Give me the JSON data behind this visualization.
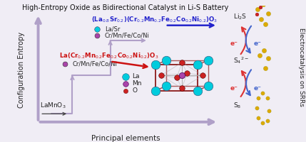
{
  "title": "High-Entropy Oxide as Bidirectional Catalyst in Li-S Battery",
  "title_fontsize": 7.0,
  "bg_color": "#f0edf5",
  "xlabel": "Principal elements",
  "ylabel": "Configuration Entropy",
  "right_label": "Electrocatalysis on SRRs",
  "formula_blue": "(La$_{0.8}$Sr$_{0.2}$)(Cr$_{0.2}$Mn$_{0.2}$Fe$_{0.2}$Co$_{0.2}$Ni$_{0.2}$)O$_3$",
  "formula_red": "La(Cr$_{0.2}$Mn$_{0.2}$Fe$_{0.2}$Co$_{0.2}$Ni$_{0.2}$)O$_3$",
  "formula_base": "LaMnO$_3$",
  "legend_La": "La",
  "legend_Mn": "Mn",
  "legend_O": "O",
  "legend_LaSr": "La/Sr",
  "legend_CrMn": "Cr/Mn/Fe/Co/Ni",
  "color_blue": "#2222cc",
  "color_red": "#cc1111",
  "color_La": "#00ccdd",
  "color_Mn": "#aa44aa",
  "color_O": "#cc2222",
  "color_axis": "#b0a0c8",
  "color_cube": "#8b1a1a",
  "color_bond": "#aaaaaa",
  "right_labels": [
    "Li$_2$S",
    "S$_4$$^{2-}$",
    "S$_8$"
  ],
  "mol_color": "#ddaa00",
  "mol_red": "#cc2222",
  "arrow_red": "#dd3333",
  "arrow_blue": "#4466cc"
}
